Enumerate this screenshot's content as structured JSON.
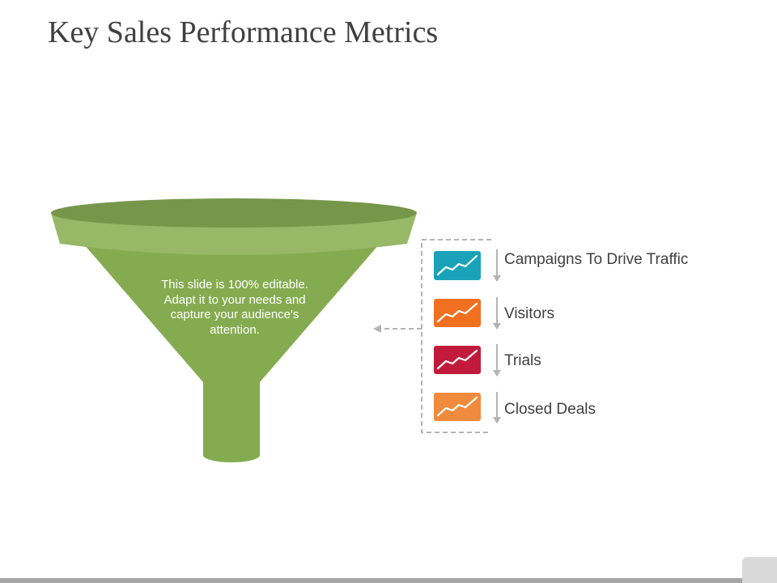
{
  "title": "Key Sales Performance Metrics",
  "funnel": {
    "text": "This slide is 100% editable. Adapt it to your needs and capture your audience's attention.",
    "colors": {
      "rim_top": "#76964a",
      "rim_band": "#96b867",
      "body": "#85ab50",
      "stem": "#85ab50"
    }
  },
  "stages": [
    {
      "label": "Campaigns To Drive Traffic",
      "color": "#1aa3b8",
      "icon": "trend-line-icon"
    },
    {
      "label": "Visitors",
      "color": "#f07020",
      "icon": "trend-line-icon"
    },
    {
      "label": "Trials",
      "color": "#c21a3a",
      "icon": "trend-line-icon"
    },
    {
      "label": "Closed Deals",
      "color": "#f08a3c",
      "icon": "trend-line-icon"
    }
  ],
  "connector_color": "#b3b3b3"
}
